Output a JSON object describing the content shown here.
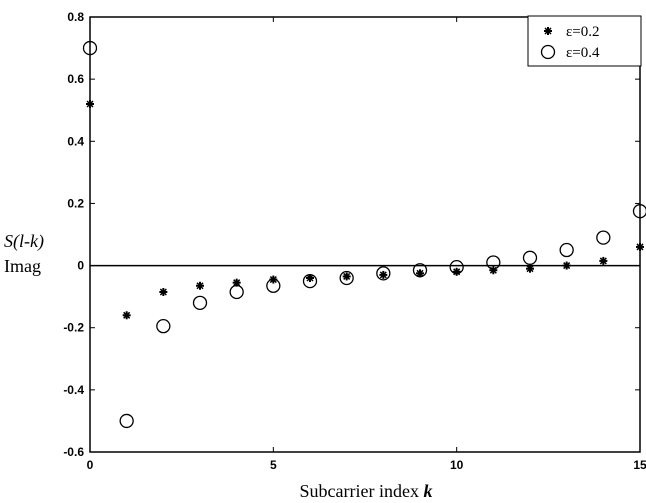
{
  "chart_data": {
    "type": "scatter",
    "xlabel_prefix": "Subcarrier index ",
    "xlabel_var": "k",
    "ylabel_line1_var": "S(l-k)",
    "ylabel_line2": "Imag",
    "xlim": [
      0,
      15
    ],
    "ylim": [
      -0.6,
      0.8
    ],
    "x_ticks": [
      0,
      5,
      10,
      15
    ],
    "x_tick_labels": [
      "0",
      "5",
      "10",
      "15"
    ],
    "y_ticks": [
      0.8,
      0.6,
      0.4,
      0.2,
      0,
      -0.2,
      -0.4,
      -0.6
    ],
    "y_tick_labels": [
      "0.8",
      "0.6",
      "0.4",
      "0.2",
      "0",
      "-0.2",
      "-0.4",
      "-0.6"
    ],
    "zero_line": true,
    "grid": false,
    "legend_position": "top-right",
    "series": [
      {
        "name": "ε=0.2",
        "marker": "star",
        "x": [
          0,
          1,
          2,
          3,
          4,
          5,
          6,
          7,
          8,
          9,
          10,
          11,
          12,
          13,
          14,
          15
        ],
        "y": [
          0.52,
          -0.16,
          -0.085,
          -0.065,
          -0.055,
          -0.045,
          -0.04,
          -0.035,
          -0.03,
          -0.025,
          -0.02,
          -0.015,
          -0.01,
          0.0,
          0.015,
          0.06
        ]
      },
      {
        "name": "ε=0.4",
        "marker": "circle",
        "x": [
          0,
          1,
          2,
          3,
          4,
          5,
          6,
          7,
          8,
          9,
          10,
          11,
          12,
          13,
          14,
          15
        ],
        "y": [
          0.7,
          -0.5,
          -0.195,
          -0.12,
          -0.085,
          -0.065,
          -0.05,
          -0.04,
          -0.025,
          -0.015,
          -0.005,
          0.01,
          0.025,
          0.05,
          0.09,
          0.175
        ]
      }
    ]
  }
}
